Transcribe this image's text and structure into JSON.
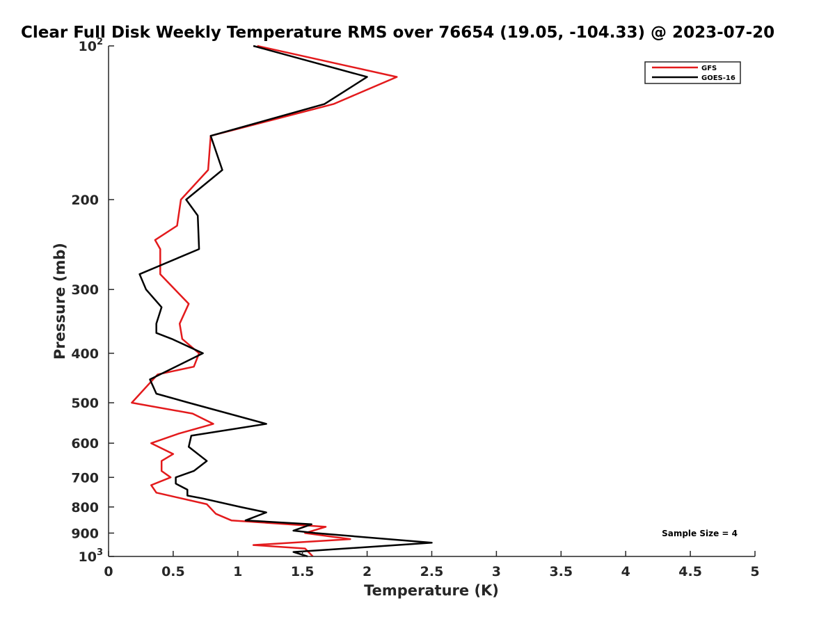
{
  "chart_data": {
    "type": "line",
    "title": "Clear Full Disk Weekly Temperature RMS over 76654 (19.05, -104.33) @ 2023-07-20",
    "xlabel": "Temperature (K)",
    "ylabel": "Pressure (mb)",
    "xlim": [
      0,
      5
    ],
    "ylim": [
      100,
      1000
    ],
    "yscale": "log",
    "y_reversed": true,
    "x_ticks": [
      0,
      0.5,
      1,
      1.5,
      2,
      2.5,
      3,
      3.5,
      4,
      4.5,
      5
    ],
    "x_tick_labels": [
      "0",
      "0.5",
      "1",
      "1.5",
      "2",
      "2.5",
      "3",
      "3.5",
      "4",
      "4.5",
      "5"
    ],
    "y_ticks": [
      {
        "value": 100,
        "base": "10",
        "exp": "2"
      },
      {
        "value": 200,
        "label": "200"
      },
      {
        "value": 300,
        "label": "300"
      },
      {
        "value": 400,
        "label": "400"
      },
      {
        "value": 500,
        "label": "500"
      },
      {
        "value": 600,
        "label": "600"
      },
      {
        "value": 700,
        "label": "700"
      },
      {
        "value": 800,
        "label": "800"
      },
      {
        "value": 900,
        "label": "900"
      },
      {
        "value": 1000,
        "base": "10",
        "exp": "3"
      }
    ],
    "legend": {
      "position": "top-right"
    },
    "annotation": "Sample Size = 4",
    "series": [
      {
        "name": "GFS",
        "color": "#e31a1c",
        "points": [
          [
            1.15,
            100
          ],
          [
            2.23,
            115
          ],
          [
            1.74,
            130
          ],
          [
            0.79,
            150
          ],
          [
            0.77,
            175
          ],
          [
            0.56,
            200
          ],
          [
            0.53,
            225
          ],
          [
            0.36,
            240
          ],
          [
            0.4,
            250
          ],
          [
            0.4,
            280
          ],
          [
            0.62,
            320
          ],
          [
            0.55,
            350
          ],
          [
            0.57,
            375
          ],
          [
            0.7,
            400
          ],
          [
            0.66,
            425
          ],
          [
            0.38,
            440
          ],
          [
            0.18,
            500
          ],
          [
            0.65,
            525
          ],
          [
            0.81,
            550
          ],
          [
            0.54,
            575
          ],
          [
            0.33,
            600
          ],
          [
            0.5,
            630
          ],
          [
            0.41,
            650
          ],
          [
            0.41,
            680
          ],
          [
            0.48,
            700
          ],
          [
            0.33,
            725
          ],
          [
            0.37,
            750
          ],
          [
            0.76,
            790
          ],
          [
            0.83,
            825
          ],
          [
            0.95,
            850
          ],
          [
            1.68,
            875
          ],
          [
            1.52,
            900
          ],
          [
            1.87,
            925
          ],
          [
            1.12,
            950
          ],
          [
            1.52,
            965
          ],
          [
            1.58,
            1000
          ]
        ]
      },
      {
        "name": "GOES-16",
        "color": "#000000",
        "points": [
          [
            1.12,
            100
          ],
          [
            2.0,
            115
          ],
          [
            1.67,
            130
          ],
          [
            0.79,
            150
          ],
          [
            0.88,
            175
          ],
          [
            0.6,
            200
          ],
          [
            0.69,
            215
          ],
          [
            0.7,
            250
          ],
          [
            0.24,
            280
          ],
          [
            0.29,
            300
          ],
          [
            0.41,
            325
          ],
          [
            0.37,
            350
          ],
          [
            0.37,
            365
          ],
          [
            0.49,
            375
          ],
          [
            0.73,
            400
          ],
          [
            0.32,
            450
          ],
          [
            0.37,
            480
          ],
          [
            0.62,
            500
          ],
          [
            1.22,
            550
          ],
          [
            0.64,
            580
          ],
          [
            0.62,
            610
          ],
          [
            0.76,
            650
          ],
          [
            0.66,
            680
          ],
          [
            0.52,
            700
          ],
          [
            0.52,
            720
          ],
          [
            0.61,
            740
          ],
          [
            0.61,
            760
          ],
          [
            0.73,
            770
          ],
          [
            1.02,
            800
          ],
          [
            1.22,
            820
          ],
          [
            1.06,
            850
          ],
          [
            1.57,
            865
          ],
          [
            1.43,
            890
          ],
          [
            1.6,
            900
          ],
          [
            2.5,
            940
          ],
          [
            1.43,
            980
          ],
          [
            1.54,
            1000
          ]
        ]
      }
    ]
  }
}
